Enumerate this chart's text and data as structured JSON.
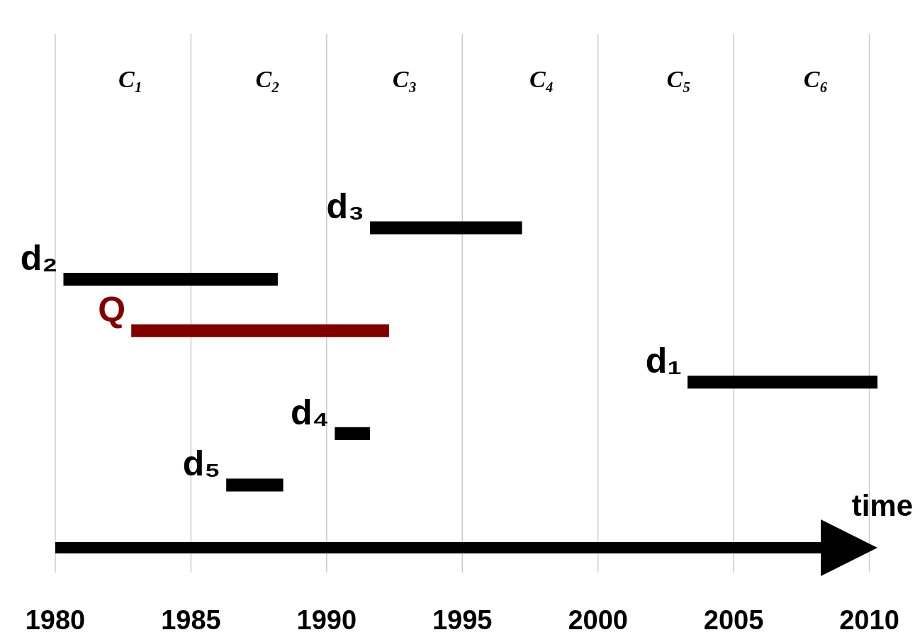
{
  "chart_data": {
    "type": "bar",
    "orientation": "horizontal",
    "xlabel": "time",
    "categories": [
      "d₃",
      "d₂",
      "Q",
      "d₁",
      "d₄",
      "d₅"
    ],
    "base": [
      1991.6,
      1980.3,
      1982.8,
      2003.3,
      1990.3,
      1986.3
    ],
    "values": [
      5.6,
      7.9,
      9.5,
      7.0,
      1.3,
      2.1
    ],
    "colors": [
      "#000000",
      "#000000",
      "#800000",
      "#000000",
      "#000000",
      "#000000"
    ],
    "xlim": [
      1980,
      2010.3
    ],
    "xticks": [
      1980,
      1985,
      1990,
      1995,
      2000,
      2005,
      2010
    ],
    "grid": "x",
    "annotations": [
      "C₁",
      "C₂",
      "C₃",
      "C₄",
      "C₅",
      "C₆"
    ]
  }
}
